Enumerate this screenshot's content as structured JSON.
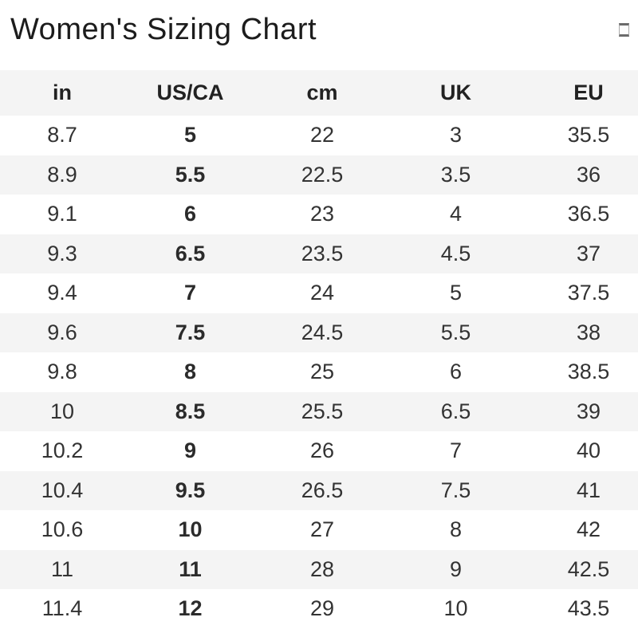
{
  "header": {
    "title": "Women's Sizing Chart",
    "icon": "square-outline"
  },
  "chart_data": {
    "type": "table",
    "title": "Women's Sizing Chart",
    "columns": [
      "in",
      "US/CA",
      "cm",
      "UK",
      "EU"
    ],
    "bold_column_index": 1,
    "rows": [
      [
        "8.7",
        "5",
        "22",
        "3",
        "35.5"
      ],
      [
        "8.9",
        "5.5",
        "22.5",
        "3.5",
        "36"
      ],
      [
        "9.1",
        "6",
        "23",
        "4",
        "36.5"
      ],
      [
        "9.3",
        "6.5",
        "23.5",
        "4.5",
        "37"
      ],
      [
        "9.4",
        "7",
        "24",
        "5",
        "37.5"
      ],
      [
        "9.6",
        "7.5",
        "24.5",
        "5.5",
        "38"
      ],
      [
        "9.8",
        "8",
        "25",
        "6",
        "38.5"
      ],
      [
        "10",
        "8.5",
        "25.5",
        "6.5",
        "39"
      ],
      [
        "10.2",
        "9",
        "26",
        "7",
        "40"
      ],
      [
        "10.4",
        "9.5",
        "26.5",
        "7.5",
        "41"
      ],
      [
        "10.6",
        "10",
        "27",
        "8",
        "42"
      ],
      [
        "11",
        "11",
        "28",
        "9",
        "42.5"
      ],
      [
        "11.4",
        "12",
        "29",
        "10",
        "43.5"
      ]
    ]
  },
  "colors": {
    "stripe_bg": "#f4f4f4",
    "header_bg": "#f4f4f4",
    "data_text": "#333333",
    "header_text": "#222222",
    "title_text": "#1c1c1c",
    "page_bg": "#ffffff"
  }
}
